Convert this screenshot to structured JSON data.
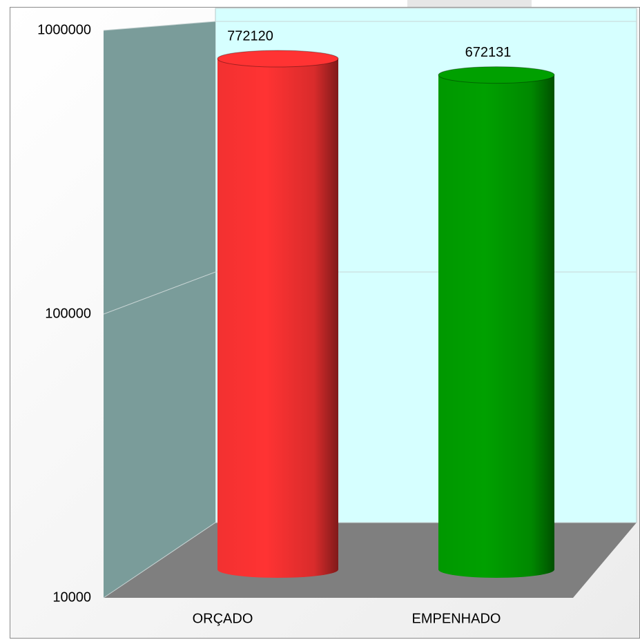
{
  "chart_data": {
    "type": "bar",
    "categories": [
      "ORÇADO",
      "EMPENHADO"
    ],
    "values": [
      772120,
      672131
    ],
    "colors": [
      "#ff3333",
      "#00a000"
    ],
    "ylim": [
      10000,
      1000000
    ],
    "yticks": [
      10000,
      100000,
      1000000
    ],
    "log_scale": true,
    "grid": true
  }
}
